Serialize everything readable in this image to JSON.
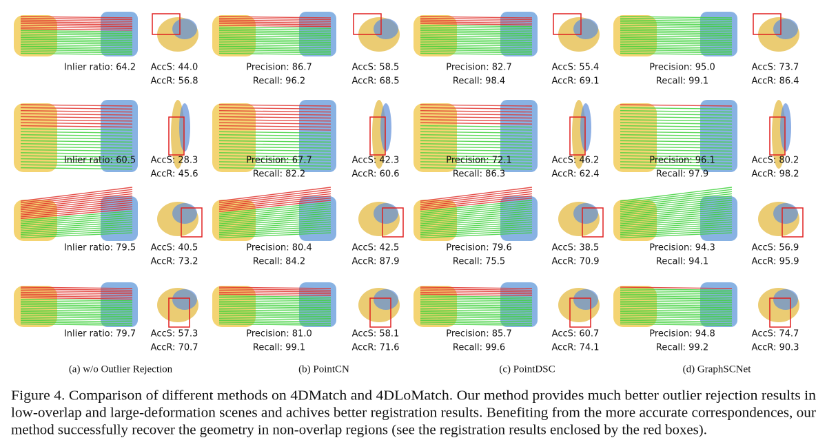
{
  "figure": {
    "rows": [
      {
        "cells": [
          {
            "metrics": [
              "Inlier ratio:  64.2"
            ],
            "acc": [
              "AccS: 44.0",
              "AccR: 56.8"
            ]
          },
          {
            "metrics": [
              "Precision: 86.7",
              "Recall:  96.2"
            ],
            "acc": [
              "AccS: 58.5",
              "AccR: 68.5"
            ]
          },
          {
            "metrics": [
              "Precision: 82.7",
              "Recall: 98.4"
            ],
            "acc": [
              "AccS: 55.4",
              "AccR: 69.1"
            ]
          },
          {
            "metrics": [
              "Precision: 95.0",
              "Recall: 99.1"
            ],
            "acc": [
              "AccS: 73.7",
              "AccR: 86.4"
            ]
          }
        ]
      },
      {
        "cells": [
          {
            "metrics": [
              "Inlier ratio:  60.5"
            ],
            "acc": [
              "AccS: 28.3",
              "AccR: 45.6"
            ]
          },
          {
            "metrics": [
              "Precision: 67.7",
              "Recall:  82.2"
            ],
            "acc": [
              "AccS: 42.3",
              "AccR: 60.6"
            ]
          },
          {
            "metrics": [
              "Precision: 72.1",
              "Recall: 86.3"
            ],
            "acc": [
              "AccS: 46.2",
              "AccR: 62.4"
            ]
          },
          {
            "metrics": [
              "Precision: 96.1",
              "Recall: 97.9"
            ],
            "acc": [
              "AccS: 80.2",
              "AccR: 98.2"
            ]
          }
        ]
      },
      {
        "cells": [
          {
            "metrics": [
              "Inlier ratio:  79.5"
            ],
            "acc": [
              "AccS: 40.5",
              "AccR: 73.2"
            ]
          },
          {
            "metrics": [
              "Precision: 80.4",
              "Recall:  84.2"
            ],
            "acc": [
              "AccS: 42.5",
              "AccR: 87.9"
            ]
          },
          {
            "metrics": [
              "Precision: 79.6",
              "Recall: 75.5"
            ],
            "acc": [
              "AccS: 38.5",
              "AccR: 70.9"
            ]
          },
          {
            "metrics": [
              "Precision: 94.3",
              "Recall: 94.1"
            ],
            "acc": [
              "AccS: 56.9",
              "AccR: 95.9"
            ]
          }
        ]
      },
      {
        "cells": [
          {
            "metrics": [
              "Inlier ratio:  79.7"
            ],
            "acc": [
              "AccS: 57.3",
              "AccR: 70.7"
            ]
          },
          {
            "metrics": [
              "Precision: 81.0",
              "Recall:  99.1"
            ],
            "acc": [
              "AccS: 58.1",
              "AccR: 71.6"
            ]
          },
          {
            "metrics": [
              "Precision: 85.7",
              "Recall: 99.6"
            ],
            "acc": [
              "AccS: 60.7",
              "AccR: 74.1"
            ]
          },
          {
            "metrics": [
              "Precision: 94.8",
              "Recall: 99.2"
            ],
            "acc": [
              "AccS: 74.7",
              "AccR: 90.3"
            ]
          }
        ]
      }
    ],
    "column_captions": [
      "(a) w/o Outlier Rejection",
      "(b) PointCN",
      "(c) PointDSC",
      "(d) GraphSCNet"
    ],
    "caption": [
      "Figure 4.  Comparison of different methods on 4DMatch and 4DLoMatch. Our method provides much better outlier rejection results in",
      "low-overlap and large-deformation scenes and achives better registration results. Benefiting from the more accurate correspondences, our",
      "method successfully recover the geometry in non-overlap regions (see the registration results enclosed by the red boxes)."
    ]
  }
}
